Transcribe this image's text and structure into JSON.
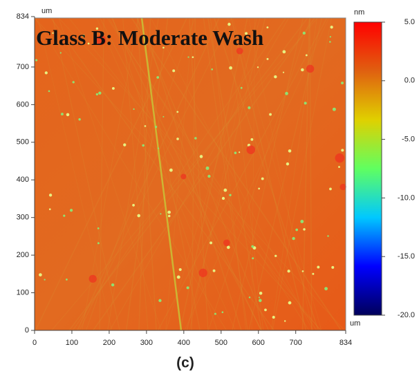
{
  "chart_data": {
    "type": "heatmap",
    "title": "Glass B: Moderate Wash",
    "x_unit": "um",
    "y_unit": "um",
    "color_unit": "nm",
    "caption": "(c)",
    "xlim": [
      0,
      834
    ],
    "xticks": [
      0,
      100,
      200,
      300,
      400,
      500,
      600,
      700,
      834
    ],
    "ylim": [
      0,
      834
    ],
    "yticks": [
      0,
      100,
      200,
      300,
      400,
      500,
      600,
      700,
      834
    ],
    "zlim": [
      -20,
      5
    ],
    "zticks": [
      {
        "value": 5,
        "label": "5.0"
      },
      {
        "value": 0,
        "label": "0.0"
      },
      {
        "value": -5,
        "label": "-5.0"
      },
      {
        "value": -10,
        "label": "-10.0"
      },
      {
        "value": -15,
        "label": "-15.0"
      },
      {
        "value": -20,
        "label": "-20.0"
      }
    ],
    "colormap": [
      "#00005a",
      "#0000ff",
      "#00c8ff",
      "#60ff60",
      "#e0d000",
      "#e06010",
      "#ff0000"
    ]
  }
}
